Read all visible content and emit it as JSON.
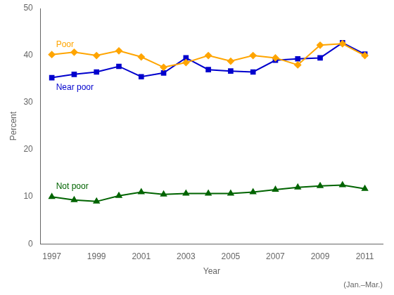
{
  "chart_data": {
    "type": "line",
    "x": [
      1997,
      1998,
      1999,
      2000,
      2001,
      2002,
      2003,
      2004,
      2005,
      2006,
      2007,
      2008,
      2009,
      2010,
      2011
    ],
    "series": [
      {
        "name": "Poor",
        "color": "#FFA500",
        "marker": "diamond",
        "values": [
          40.2,
          40.7,
          40.0,
          41.0,
          39.7,
          37.5,
          38.5,
          40.0,
          38.8,
          40.0,
          39.5,
          38.0,
          42.2,
          42.5,
          40.0
        ]
      },
      {
        "name": "Near poor",
        "color": "#0000CD",
        "marker": "square",
        "values": [
          35.3,
          36.0,
          36.5,
          37.7,
          35.5,
          36.3,
          39.5,
          37.0,
          36.7,
          36.5,
          39.0,
          39.3,
          39.5,
          42.7,
          40.3
        ]
      },
      {
        "name": "Not poor",
        "color": "#006400",
        "marker": "triangle",
        "values": [
          10.0,
          9.3,
          9.0,
          10.2,
          11.0,
          10.5,
          10.7,
          10.7,
          10.7,
          11.0,
          11.5,
          12.0,
          12.3,
          12.5,
          11.7
        ]
      }
    ],
    "x_label": "Year",
    "y_label": "Percent",
    "annotations": [
      "(Jan.–Mar.)"
    ],
    "xlim": [
      1996.5,
      2011.8
    ],
    "xticks": [
      1997,
      1999,
      2001,
      2003,
      2005,
      2007,
      2009,
      2011
    ],
    "ylim": [
      0,
      50
    ],
    "yticks": [
      0,
      10,
      20,
      30,
      40,
      50
    ],
    "grid": false
  }
}
